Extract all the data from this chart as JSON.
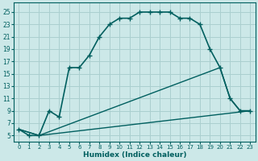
{
  "xlabel": "Humidex (Indice chaleur)",
  "bg_color": "#cce8e8",
  "grid_color": "#aacfcf",
  "line_color": "#005f5f",
  "xlim": [
    -0.5,
    23.5
  ],
  "ylim": [
    4.0,
    26.5
  ],
  "xticks": [
    0,
    1,
    2,
    3,
    4,
    5,
    6,
    7,
    8,
    9,
    10,
    11,
    12,
    13,
    14,
    15,
    16,
    17,
    18,
    19,
    20,
    21,
    22,
    23
  ],
  "yticks": [
    5,
    7,
    9,
    11,
    13,
    15,
    17,
    19,
    21,
    23,
    25
  ],
  "line1_x": [
    0,
    1,
    2,
    3,
    4,
    5,
    6,
    7,
    8,
    9,
    10,
    11,
    12,
    13,
    14,
    15,
    16,
    17,
    18,
    19,
    20,
    21,
    22,
    23
  ],
  "line1_y": [
    6,
    5,
    5,
    9,
    8,
    16,
    16,
    18,
    21,
    23,
    24,
    24,
    25,
    25,
    25,
    25,
    24,
    24,
    23,
    19,
    16,
    11,
    9,
    9
  ],
  "line2_x": [
    0,
    2,
    20,
    21,
    22,
    23
  ],
  "line2_y": [
    6,
    5,
    16,
    11,
    9,
    9
  ],
  "line3_x": [
    0,
    2,
    23
  ],
  "line3_y": [
    6,
    5,
    9
  ]
}
